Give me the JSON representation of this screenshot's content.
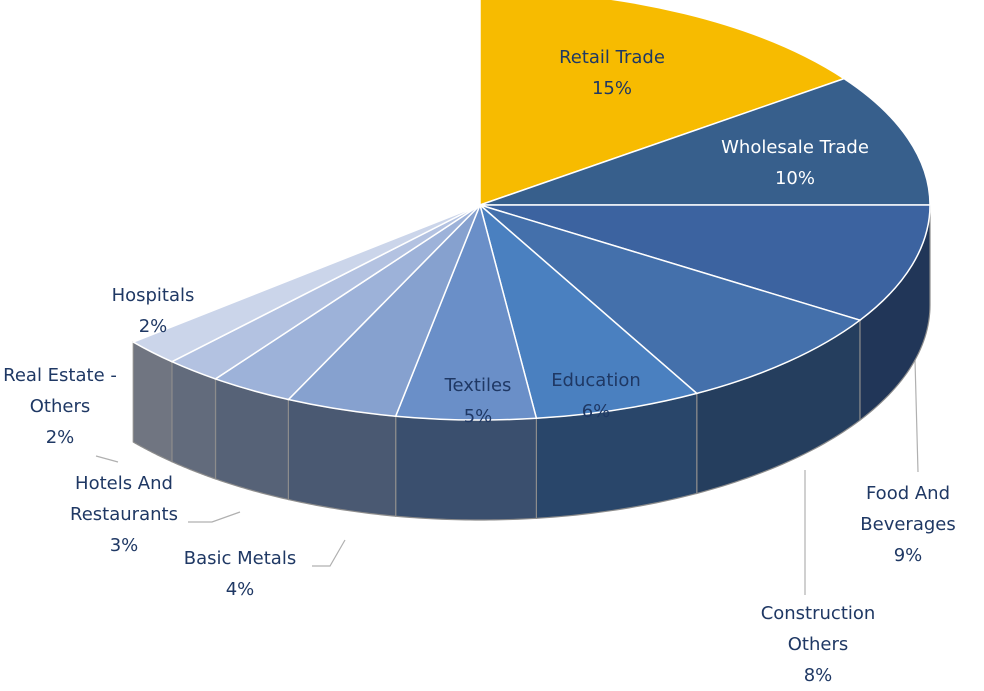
{
  "chart_data": {
    "type": "pie",
    "categories": [
      "Retail Trade",
      "Wholesale Trade",
      "Food And Beverages",
      "Construction Others",
      "Education",
      "Textiles",
      "Basic Metals",
      "Hotels And Restaurants",
      "Real Estate - Others",
      "Hospitals"
    ],
    "values": [
      15,
      10,
      9,
      8,
      6,
      5,
      4,
      3,
      2,
      2
    ],
    "value_labels": [
      "15%",
      "10%",
      "9%",
      "8%",
      "6%",
      "5%",
      "4%",
      "3%",
      "2%",
      "2%"
    ],
    "colors": [
      "#f7bb00",
      "#375f8c",
      "#3c63a0",
      "#4470ab",
      "#4a80c0",
      "#6a8fc8",
      "#86a1cf",
      "#9db2d9",
      "#b3c2e1",
      "#cbd5ea"
    ]
  }
}
